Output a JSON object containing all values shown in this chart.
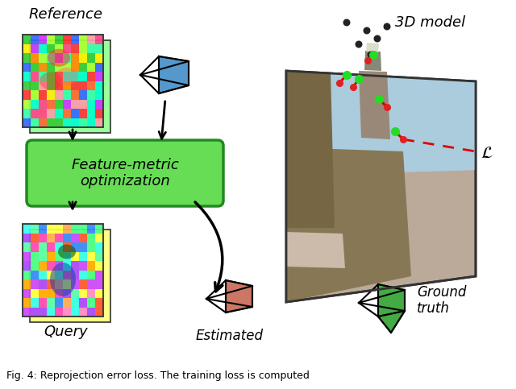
{
  "caption": "Fig. 4: Reprojection error loss. The training loss is computed",
  "bg_color": "#ffffff",
  "reference_label": "Reference",
  "query_label": "Query",
  "fmo_label": "Feature-metric\noptimization",
  "estimated_label": "Estimated",
  "ground_truth_label": "Ground\ntruth",
  "model_label": "3D model",
  "loss_label": "$\\mathcal{L}$",
  "fmo_box_color": "#66dd55",
  "fmo_box_edge": "#228822",
  "ref_frustum_color": "#5599cc",
  "estimated_color": "#cc7766",
  "ground_truth_color": "#44aa44",
  "dots_color": "#222222",
  "sky_color": "#aaccee",
  "building_color": "#887766"
}
